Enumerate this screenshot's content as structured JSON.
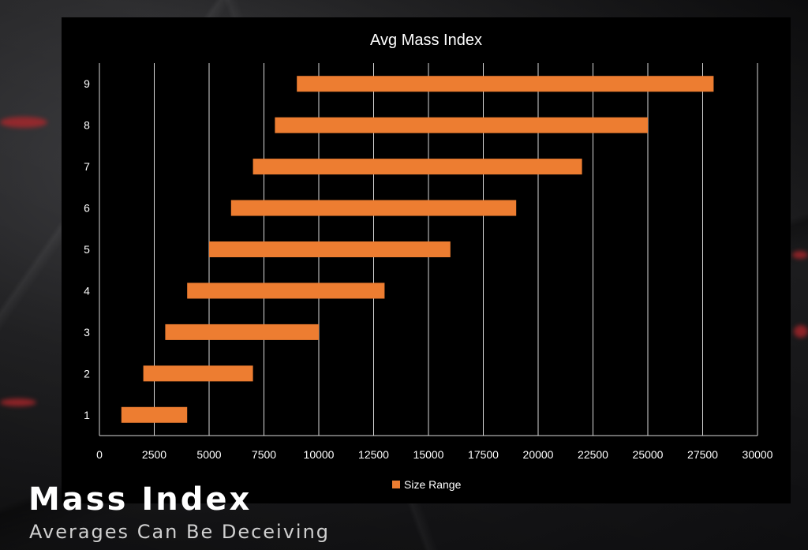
{
  "footer": {
    "title": "Mass Index",
    "subtitle": "Averages Can Be Deceiving"
  },
  "colors": {
    "bar": "#ed7d31",
    "panel": "#000000",
    "grid": "#d9d9d9",
    "text": "#ffffff"
  },
  "chart_data": {
    "type": "bar",
    "orientation": "horizontal",
    "title": "Avg Mass Index",
    "xlabel": "",
    "ylabel": "",
    "categories": [
      "1",
      "2",
      "3",
      "4",
      "5",
      "6",
      "7",
      "8",
      "9"
    ],
    "series": [
      {
        "name": "Size Range",
        "color": "#ed7d31",
        "ranges": [
          [
            1000,
            4000
          ],
          [
            2000,
            7000
          ],
          [
            3000,
            10000
          ],
          [
            4000,
            13000
          ],
          [
            5000,
            16000
          ],
          [
            6000,
            19000
          ],
          [
            7000,
            22000
          ],
          [
            8000,
            25000
          ],
          [
            9000,
            28000
          ]
        ]
      }
    ],
    "xlim": [
      0,
      30000
    ],
    "xticks": [
      "0",
      "2500",
      "5000",
      "7500",
      "10000",
      "12500",
      "15000",
      "17500",
      "20000",
      "22500",
      "25000",
      "27500",
      "30000"
    ],
    "grid": "vertical",
    "legend": "bottom"
  }
}
